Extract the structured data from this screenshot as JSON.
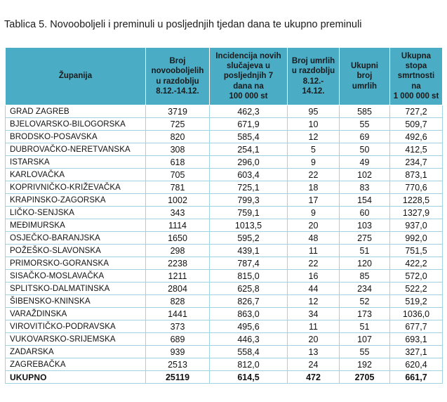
{
  "caption": "Tablica 5. Novooboljeli i preminuli u posljednjih tjedan dana te ukupno preminuli",
  "headers": {
    "county": "Županija",
    "new_cases": "Broj novooboljelih u razdoblju 8.12.-14.12.",
    "incidence": "Incidencija novih slučajeva u posljednjih 7 dana na 100 000 st",
    "deaths_period": "Broj umrlih u razdoblju 8.12.-14.12.",
    "total_deaths": "Ukupni broj umrlih",
    "mortality": "Ukupna stopa smrtnosti na 1 000 000 st"
  },
  "rows": [
    {
      "county": "GRAD ZAGREB",
      "new_cases": "3719",
      "incidence": "462,3",
      "deaths_period": "95",
      "total_deaths": "585",
      "mortality": "727,2"
    },
    {
      "county": "BJELOVARSKO-BILOGORSKA",
      "new_cases": "725",
      "incidence": "671,9",
      "deaths_period": "10",
      "total_deaths": "55",
      "mortality": "509,7"
    },
    {
      "county": "BRODSKO-POSAVSKA",
      "new_cases": "820",
      "incidence": "585,4",
      "deaths_period": "12",
      "total_deaths": "69",
      "mortality": "492,6"
    },
    {
      "county": "DUBROVAČKO-NERETVANSKA",
      "new_cases": "308",
      "incidence": "254,1",
      "deaths_period": "5",
      "total_deaths": "50",
      "mortality": "412,5"
    },
    {
      "county": "ISTARSKA",
      "new_cases": "618",
      "incidence": "296,0",
      "deaths_period": "9",
      "total_deaths": "49",
      "mortality": "234,7"
    },
    {
      "county": "KARLOVAČKA",
      "new_cases": "705",
      "incidence": "603,4",
      "deaths_period": "22",
      "total_deaths": "102",
      "mortality": "873,1"
    },
    {
      "county": "KOPRIVNIČKO-KRIŽEVAČKA",
      "new_cases": "781",
      "incidence": "725,1",
      "deaths_period": "18",
      "total_deaths": "83",
      "mortality": "770,6"
    },
    {
      "county": "KRAPINSKO-ZAGORSKA",
      "new_cases": "1002",
      "incidence": "799,3",
      "deaths_period": "17",
      "total_deaths": "154",
      "mortality": "1228,5"
    },
    {
      "county": "LIČKO-SENJSKA",
      "new_cases": "343",
      "incidence": "759,1",
      "deaths_period": "9",
      "total_deaths": "60",
      "mortality": "1327,9"
    },
    {
      "county": "MEĐIMURSKA",
      "new_cases": "1114",
      "incidence": "1013,5",
      "deaths_period": "20",
      "total_deaths": "103",
      "mortality": "937,0"
    },
    {
      "county": "OSJEČKO-BARANJSKA",
      "new_cases": "1650",
      "incidence": "595,2",
      "deaths_period": "48",
      "total_deaths": "275",
      "mortality": "992,0"
    },
    {
      "county": "POŽEŠKO-SLAVONSKA",
      "new_cases": "298",
      "incidence": "439,1",
      "deaths_period": "11",
      "total_deaths": "51",
      "mortality": "751,5"
    },
    {
      "county": "PRIMORSKO-GORANSKA",
      "new_cases": "2238",
      "incidence": "787,4",
      "deaths_period": "22",
      "total_deaths": "120",
      "mortality": "422,2"
    },
    {
      "county": "SISAČKO-MOSLAVAČKA",
      "new_cases": "1211",
      "incidence": "815,0",
      "deaths_period": "16",
      "total_deaths": "85",
      "mortality": "572,0"
    },
    {
      "county": "SPLITSKO-DALMATINSKA",
      "new_cases": "2804",
      "incidence": "625,8",
      "deaths_period": "44",
      "total_deaths": "234",
      "mortality": "522,2"
    },
    {
      "county": "ŠIBENSKO-KNINSKA",
      "new_cases": "828",
      "incidence": "826,7",
      "deaths_period": "12",
      "total_deaths": "52",
      "mortality": "519,2"
    },
    {
      "county": "VARAŽDINSKA",
      "new_cases": "1441",
      "incidence": "863,0",
      "deaths_period": "34",
      "total_deaths": "173",
      "mortality": "1036,0"
    },
    {
      "county": "VIROVITIČKO-PODRAVSKA",
      "new_cases": "373",
      "incidence": "495,6",
      "deaths_period": "11",
      "total_deaths": "51",
      "mortality": "677,7"
    },
    {
      "county": "VUKOVARSKO-SRIJEMSKA",
      "new_cases": "689",
      "incidence": "446,3",
      "deaths_period": "20",
      "total_deaths": "107",
      "mortality": "693,1"
    },
    {
      "county": "ZADARSKA",
      "new_cases": "939",
      "incidence": "558,4",
      "deaths_period": "13",
      "total_deaths": "55",
      "mortality": "327,1"
    },
    {
      "county": "ZAGREBAČKA",
      "new_cases": "2513",
      "incidence": "812,0",
      "deaths_period": "24",
      "total_deaths": "192",
      "mortality": "620,4"
    }
  ],
  "total": {
    "county": "UKUPNO",
    "new_cases": "25119",
    "incidence": "614,5",
    "deaths_period": "472",
    "total_deaths": "2705",
    "mortality": "661,7"
  }
}
